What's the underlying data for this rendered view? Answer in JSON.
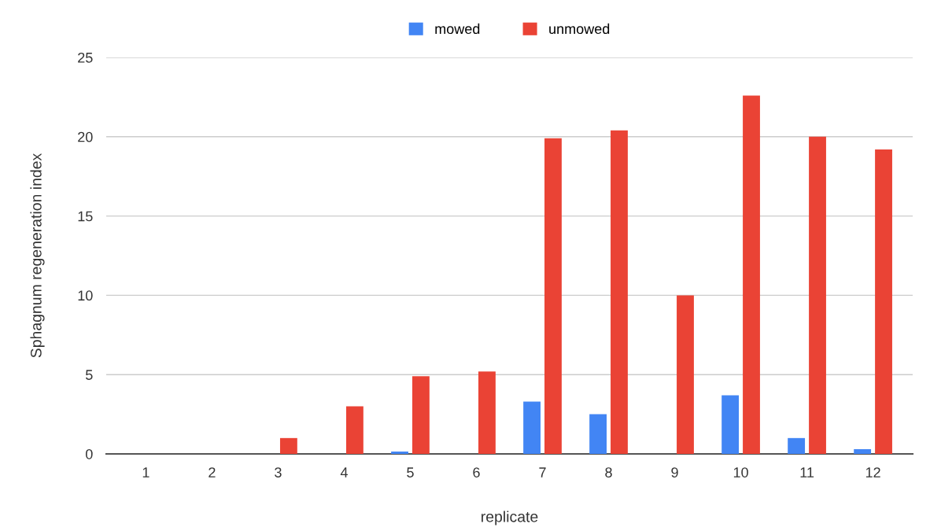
{
  "chart_data": {
    "type": "bar",
    "xlabel": "replicate",
    "ylabel": "Sphagnum regeneration index",
    "categories": [
      "1",
      "2",
      "3",
      "4",
      "5",
      "6",
      "7",
      "8",
      "9",
      "10",
      "11",
      "12"
    ],
    "series": [
      {
        "name": "mowed",
        "color": "#4285f4",
        "values": [
          0,
          0,
          0,
          0,
          0.15,
          0,
          3.3,
          2.5,
          0,
          3.7,
          1.0,
          0.3
        ]
      },
      {
        "name": "unmowed",
        "color": "#ea4335",
        "values": [
          0,
          0,
          1.0,
          3.0,
          4.9,
          5.2,
          19.9,
          20.4,
          10.0,
          22.6,
          20.0,
          19.2
        ]
      }
    ],
    "ylim": [
      0,
      25
    ],
    "yticks": [
      0,
      5,
      10,
      15,
      20,
      25
    ],
    "grid": "y",
    "legend": "top"
  }
}
